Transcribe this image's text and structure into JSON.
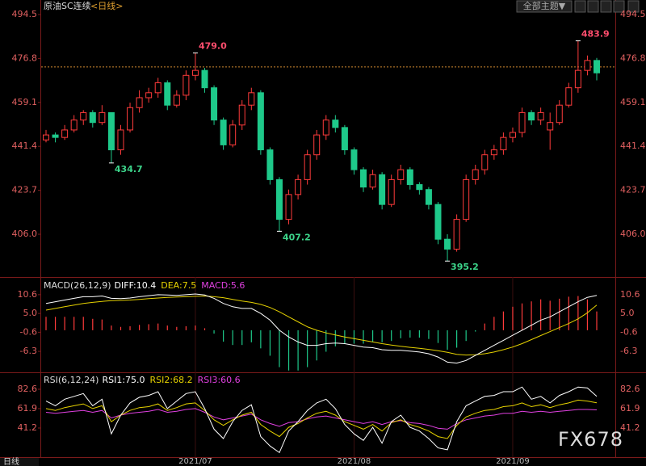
{
  "header": {
    "symbol": "原油SC连续",
    "period": "<日线>",
    "theme_button": "全部主题▼"
  },
  "footer": {
    "period": "日线",
    "watermark": "FX678"
  },
  "chart_data": [
    {
      "type": "candlestick",
      "up_color": "#ff3b3b",
      "down_color": "#1ec98a",
      "ylim": [
        389.1,
        499.7
      ],
      "yticks": [
        494.5,
        476.8,
        459.1,
        441.4,
        423.7,
        {
          "value": 406,
          "label": "406.0"
        }
      ],
      "last_price_line": 473.4,
      "last_price_color": "#d08a30",
      "categories": [
        null,
        null,
        null,
        null,
        null,
        null,
        null,
        null,
        null,
        null,
        null,
        null,
        null,
        null,
        null,
        null,
        "2021/07",
        null,
        null,
        null,
        null,
        null,
        null,
        null,
        null,
        null,
        null,
        null,
        null,
        null,
        null,
        null,
        null,
        "2021/08",
        null,
        null,
        null,
        null,
        null,
        null,
        null,
        null,
        null,
        null,
        null,
        null,
        null,
        null,
        null,
        null,
        "2021/09",
        null,
        null,
        null,
        null,
        null,
        null,
        null,
        null,
        null
      ],
      "ohlc": [
        [
          444,
          448,
          443,
          446
        ],
        [
          446,
          447,
          443,
          445
        ],
        [
          445,
          450,
          444,
          448
        ],
        [
          448,
          454,
          447,
          452
        ],
        [
          452,
          456,
          450,
          455
        ],
        [
          455,
          456,
          449,
          451
        ],
        [
          451,
          458,
          450,
          455
        ],
        [
          455,
          455,
          434.7,
          440
        ],
        [
          440,
          450,
          438,
          448
        ],
        [
          448,
          459,
          447,
          457
        ],
        [
          457,
          464,
          455,
          461
        ],
        [
          461,
          465,
          459,
          463
        ],
        [
          463,
          469,
          461,
          467
        ],
        [
          467,
          468,
          456,
          458
        ],
        [
          458,
          464,
          457,
          462
        ],
        [
          462,
          472,
          460,
          470
        ],
        [
          470,
          479.0,
          468,
          472
        ],
        [
          472,
          473,
          463,
          465
        ],
        [
          465,
          466,
          450,
          452
        ],
        [
          452,
          453,
          440,
          442
        ],
        [
          442,
          452,
          441,
          450
        ],
        [
          450,
          460,
          448,
          458
        ],
        [
          458,
          465,
          456,
          463
        ],
        [
          463,
          464,
          438,
          440
        ],
        [
          440,
          441,
          426,
          428
        ],
        [
          428,
          429,
          407.2,
          412
        ],
        [
          412,
          424,
          410,
          422
        ],
        [
          422,
          430,
          420,
          428
        ],
        [
          428,
          440,
          426,
          438
        ],
        [
          438,
          448,
          436,
          446
        ],
        [
          446,
          454,
          444,
          452
        ],
        [
          452,
          454,
          447,
          449
        ],
        [
          449,
          450,
          438,
          440
        ],
        [
          440,
          441,
          430,
          432
        ],
        [
          432,
          433,
          423,
          425
        ],
        [
          425,
          432,
          424,
          430
        ],
        [
          430,
          431,
          416,
          418
        ],
        [
          418,
          430,
          417,
          428
        ],
        [
          428,
          434,
          426,
          432
        ],
        [
          432,
          433,
          424,
          426
        ],
        [
          426,
          427,
          422,
          424
        ],
        [
          424,
          425,
          416,
          418
        ],
        [
          418,
          419,
          402,
          404
        ],
        [
          404,
          406,
          395.2,
          400
        ],
        [
          400,
          414,
          399,
          412
        ],
        [
          412,
          430,
          411,
          428
        ],
        [
          428,
          434,
          426,
          432
        ],
        [
          432,
          440,
          430,
          438
        ],
        [
          438,
          442,
          436,
          440
        ],
        [
          440,
          447,
          438,
          445
        ],
        [
          445,
          449,
          443,
          447
        ],
        [
          447,
          457,
          445,
          455
        ],
        [
          455,
          456,
          450,
          452
        ],
        [
          452,
          457,
          450,
          455
        ],
        [
          448,
          455,
          440,
          451
        ],
        [
          451,
          460,
          450,
          458
        ],
        [
          458,
          467,
          457,
          465
        ],
        [
          465,
          483.9,
          463,
          472
        ],
        [
          472,
          478,
          470,
          476
        ],
        [
          476,
          477,
          468,
          471
        ]
      ],
      "annotations": [
        {
          "label": "479.0",
          "value": 479.0
        },
        {
          "label": "434.7",
          "value": 434.7
        },
        {
          "label": "407.2",
          "value": 407.2
        },
        {
          "label": "395.2",
          "value": 395.2
        },
        {
          "label": "483.9",
          "value": 483.9
        }
      ]
    },
    {
      "type": "macd",
      "title": "MACD(26,12,9)",
      "ylim": [
        -12.3,
        14.9
      ],
      "yticks": [
        10.6,
        {
          "value": 5,
          "label": "5.0"
        },
        -0.6,
        -6.3
      ],
      "up_color": "#ff3b3b",
      "down_color": "#1ec98a",
      "series": [
        {
          "name": "DIFF:10.4",
          "color": "#ffffff",
          "values": [
            8,
            8.5,
            9,
            9.5,
            10,
            10,
            10.2,
            9.5,
            9.4,
            9.6,
            10,
            10.3,
            10.6,
            10.5,
            10.4,
            10.6,
            10.8,
            10.5,
            9.5,
            8,
            7,
            6.5,
            6.5,
            5,
            3,
            0,
            -2,
            -3.5,
            -4.5,
            -4.5,
            -4,
            -3.8,
            -4,
            -4.5,
            -5,
            -5.2,
            -5.8,
            -6,
            -6,
            -6.2,
            -6.5,
            -7,
            -8,
            -9.5,
            -9.8,
            -9,
            -7.5,
            -6,
            -4.5,
            -3,
            -1.5,
            0,
            1.5,
            3,
            4,
            5.5,
            7,
            8.5,
            9.8,
            10.4
          ]
        },
        {
          "name": "DEA:7.5",
          "color": "#e6d200",
          "values": [
            6,
            6.5,
            7,
            7.5,
            8,
            8.3,
            8.6,
            8.8,
            8.9,
            9,
            9.2,
            9.4,
            9.6,
            9.8,
            9.9,
            10,
            10.1,
            10.2,
            10,
            9.7,
            9.2,
            8.7,
            8.3,
            7.7,
            6.8,
            5.5,
            4,
            2.5,
            1,
            0,
            -0.8,
            -1.4,
            -2,
            -2.5,
            -3,
            -3.5,
            -4,
            -4.4,
            -4.8,
            -5.1,
            -5.4,
            -5.7,
            -6.1,
            -6.6,
            -7.2,
            -7.4,
            -7.3,
            -7,
            -6.5,
            -5.8,
            -5,
            -4,
            -2.8,
            -1.6,
            -0.4,
            0.8,
            2,
            3.4,
            5.2,
            7.5
          ]
        },
        {
          "name": "MACD:5.6",
          "color": "#e040e0",
          "values": [
            4,
            4,
            4,
            4,
            4,
            3.4,
            3.2,
            1.4,
            1,
            1.2,
            1.6,
            1.8,
            2,
            1.4,
            1,
            1.2,
            1.4,
            0.6,
            -1,
            -3.4,
            -4.4,
            -4.4,
            -3.6,
            -5.4,
            -7.6,
            -11,
            -12,
            -12,
            -11,
            -9,
            -6.4,
            -4.8,
            -4,
            -4,
            -4,
            -3.4,
            -3.6,
            -3.2,
            -2.4,
            -2.2,
            -2.2,
            -2.6,
            -3.8,
            -5.8,
            -5.2,
            -3.2,
            -0.4,
            2,
            4,
            5.6,
            7,
            8,
            8.6,
            9.2,
            8.8,
            9.4,
            10,
            10.2,
            9.2,
            5.6
          ]
        }
      ]
    },
    {
      "type": "rsi",
      "title": "RSI(6,12,24)",
      "ylim": [
        11,
        98.1
      ],
      "yticks": [
        82.6,
        61.9,
        41.2
      ],
      "series": [
        {
          "name": "RSI1:75.0",
          "color": "#ffffff",
          "values": [
            70,
            65,
            72,
            75,
            78,
            65,
            72,
            35,
            55,
            68,
            74,
            76,
            80,
            62,
            70,
            78,
            80,
            62,
            40,
            30,
            48,
            60,
            66,
            32,
            22,
            15,
            38,
            48,
            60,
            68,
            72,
            62,
            45,
            35,
            28,
            42,
            25,
            48,
            55,
            42,
            38,
            30,
            20,
            18,
            48,
            65,
            70,
            75,
            76,
            80,
            80,
            85,
            72,
            75,
            68,
            76,
            80,
            85,
            84,
            75
          ]
        },
        {
          "name": "RSI2:68.2",
          "color": "#e6d200",
          "values": [
            62,
            60,
            63,
            65,
            67,
            62,
            65,
            48,
            55,
            60,
            63,
            64,
            67,
            60,
            63,
            67,
            68,
            60,
            50,
            44,
            50,
            55,
            58,
            45,
            38,
            32,
            42,
            46,
            52,
            57,
            59,
            55,
            48,
            44,
            40,
            45,
            38,
            47,
            50,
            45,
            42,
            38,
            32,
            30,
            44,
            53,
            57,
            60,
            61,
            64,
            65,
            68,
            64,
            66,
            63,
            66,
            68,
            71,
            70,
            68.2
          ]
        },
        {
          "name": "RSI3:60.6",
          "color": "#e040e0",
          "values": [
            58,
            57,
            58,
            59,
            60,
            58,
            60,
            52,
            55,
            57,
            58,
            59,
            61,
            58,
            59,
            61,
            62,
            58,
            53,
            50,
            52,
            54,
            56,
            50,
            46,
            43,
            47,
            48,
            51,
            53,
            54,
            52,
            50,
            48,
            46,
            48,
            45,
            48,
            49,
            47,
            46,
            44,
            41,
            40,
            46,
            50,
            52,
            54,
            55,
            57,
            57,
            59,
            58,
            59,
            58,
            59,
            60,
            61,
            61,
            60.6
          ]
        }
      ]
    }
  ]
}
